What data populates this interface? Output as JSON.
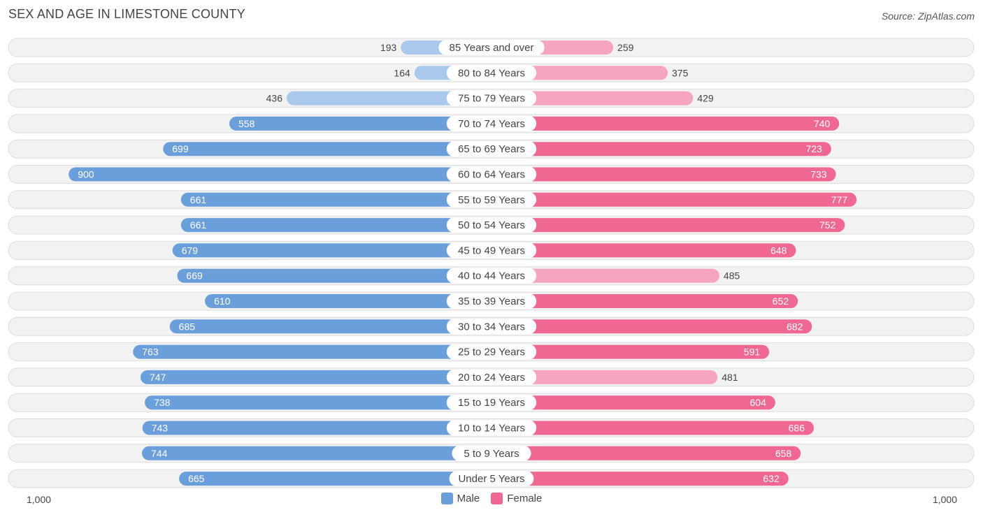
{
  "title": "SEX AND AGE IN LIMESTONE COUNTY",
  "source": "Source: ZipAtlas.com",
  "colors": {
    "male_strong": "#6a9fdb",
    "male_light": "#a9c8ec",
    "female_strong": "#f06892",
    "female_light": "#f7a4bf",
    "row_bg": "#f2f2f2",
    "row_border": "#dddddd"
  },
  "legend": {
    "male_label": "Male",
    "female_label": "Female"
  },
  "axis": {
    "left_label": "1,000",
    "right_label": "1,000"
  },
  "chart_data": {
    "type": "bar",
    "orientation": "horizontal-diverging",
    "categories": [
      "85 Years and over",
      "80 to 84 Years",
      "75 to 79 Years",
      "70 to 74 Years",
      "65 to 69 Years",
      "60 to 64 Years",
      "55 to 59 Years",
      "50 to 54 Years",
      "45 to 49 Years",
      "40 to 44 Years",
      "35 to 39 Years",
      "30 to 34 Years",
      "25 to 29 Years",
      "20 to 24 Years",
      "15 to 19 Years",
      "10 to 14 Years",
      "5 to 9 Years",
      "Under 5 Years"
    ],
    "series": [
      {
        "name": "Male",
        "values": [
          193,
          164,
          436,
          558,
          699,
          900,
          661,
          661,
          679,
          669,
          610,
          685,
          763,
          747,
          738,
          743,
          744,
          665
        ]
      },
      {
        "name": "Female",
        "values": [
          259,
          375,
          429,
          740,
          723,
          733,
          777,
          752,
          648,
          485,
          652,
          682,
          591,
          481,
          604,
          686,
          658,
          632
        ]
      }
    ],
    "xlim": [
      -1000,
      1000
    ],
    "legend_position": "bottom-center"
  }
}
